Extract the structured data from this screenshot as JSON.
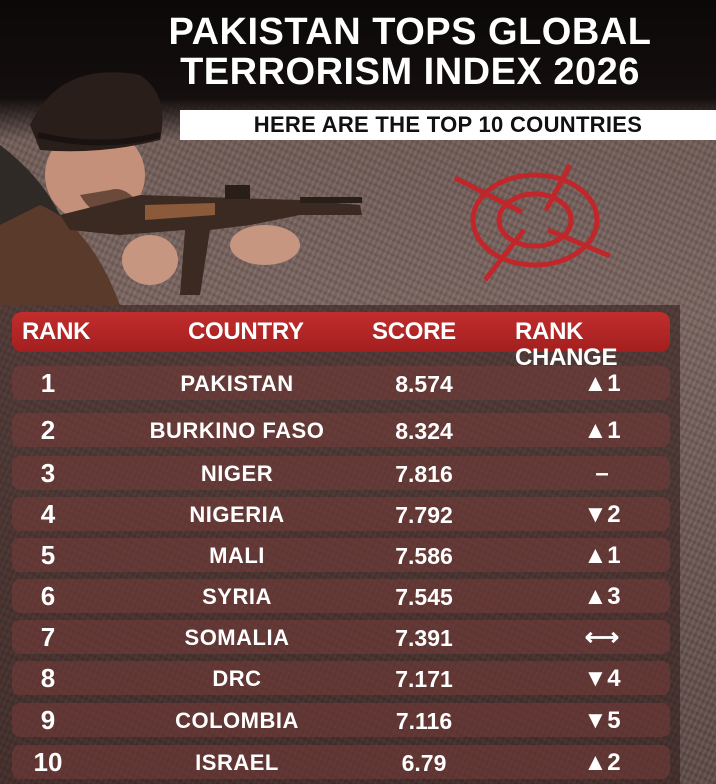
{
  "header": {
    "title_line1": "PAKISTAN TOPS GLOBAL",
    "title_line2": "TERRORISM INDEX 2026",
    "subtitle": "HERE ARE THE TOP 10 COUNTRIES"
  },
  "table": {
    "columns": {
      "rank": "RANK",
      "country": "COUNTRY",
      "score": "SCORE",
      "change": "RANK CHANGE"
    },
    "rows": [
      {
        "rank": "1",
        "country": "PAKISTAN",
        "score": "8.574",
        "change": "▲1"
      },
      {
        "rank": "2",
        "country": "BURKINO FASO",
        "score": "8.324",
        "change": "▲1"
      },
      {
        "rank": "3",
        "country": "NIGER",
        "score": "7.816",
        "change": "–"
      },
      {
        "rank": "4",
        "country": "NIGERIA",
        "score": "7.792",
        "change": "▼2"
      },
      {
        "rank": "5",
        "country": "MALI",
        "score": "7.586",
        "change": "▲1"
      },
      {
        "rank": "6",
        "country": "SYRIA",
        "score": "7.545",
        "change": "▲3"
      },
      {
        "rank": "7",
        "country": "SOMALIA",
        "score": "7.391",
        "change": "⟷"
      },
      {
        "rank": "8",
        "country": "DRC",
        "score": "7.171",
        "change": "▼4"
      },
      {
        "rank": "9",
        "country": "COLOMBIA",
        "score": "7.116",
        "change": "▼5"
      },
      {
        "rank": "10",
        "country": "ISRAEL",
        "score": "6.79",
        "change": "▲2"
      }
    ]
  },
  "colors": {
    "accent_red": "#b82525",
    "header_bg": "#0b0808"
  },
  "icons": {
    "soldier": "soldier-with-rifle-illustration",
    "target": "crosshair-target-icon"
  }
}
